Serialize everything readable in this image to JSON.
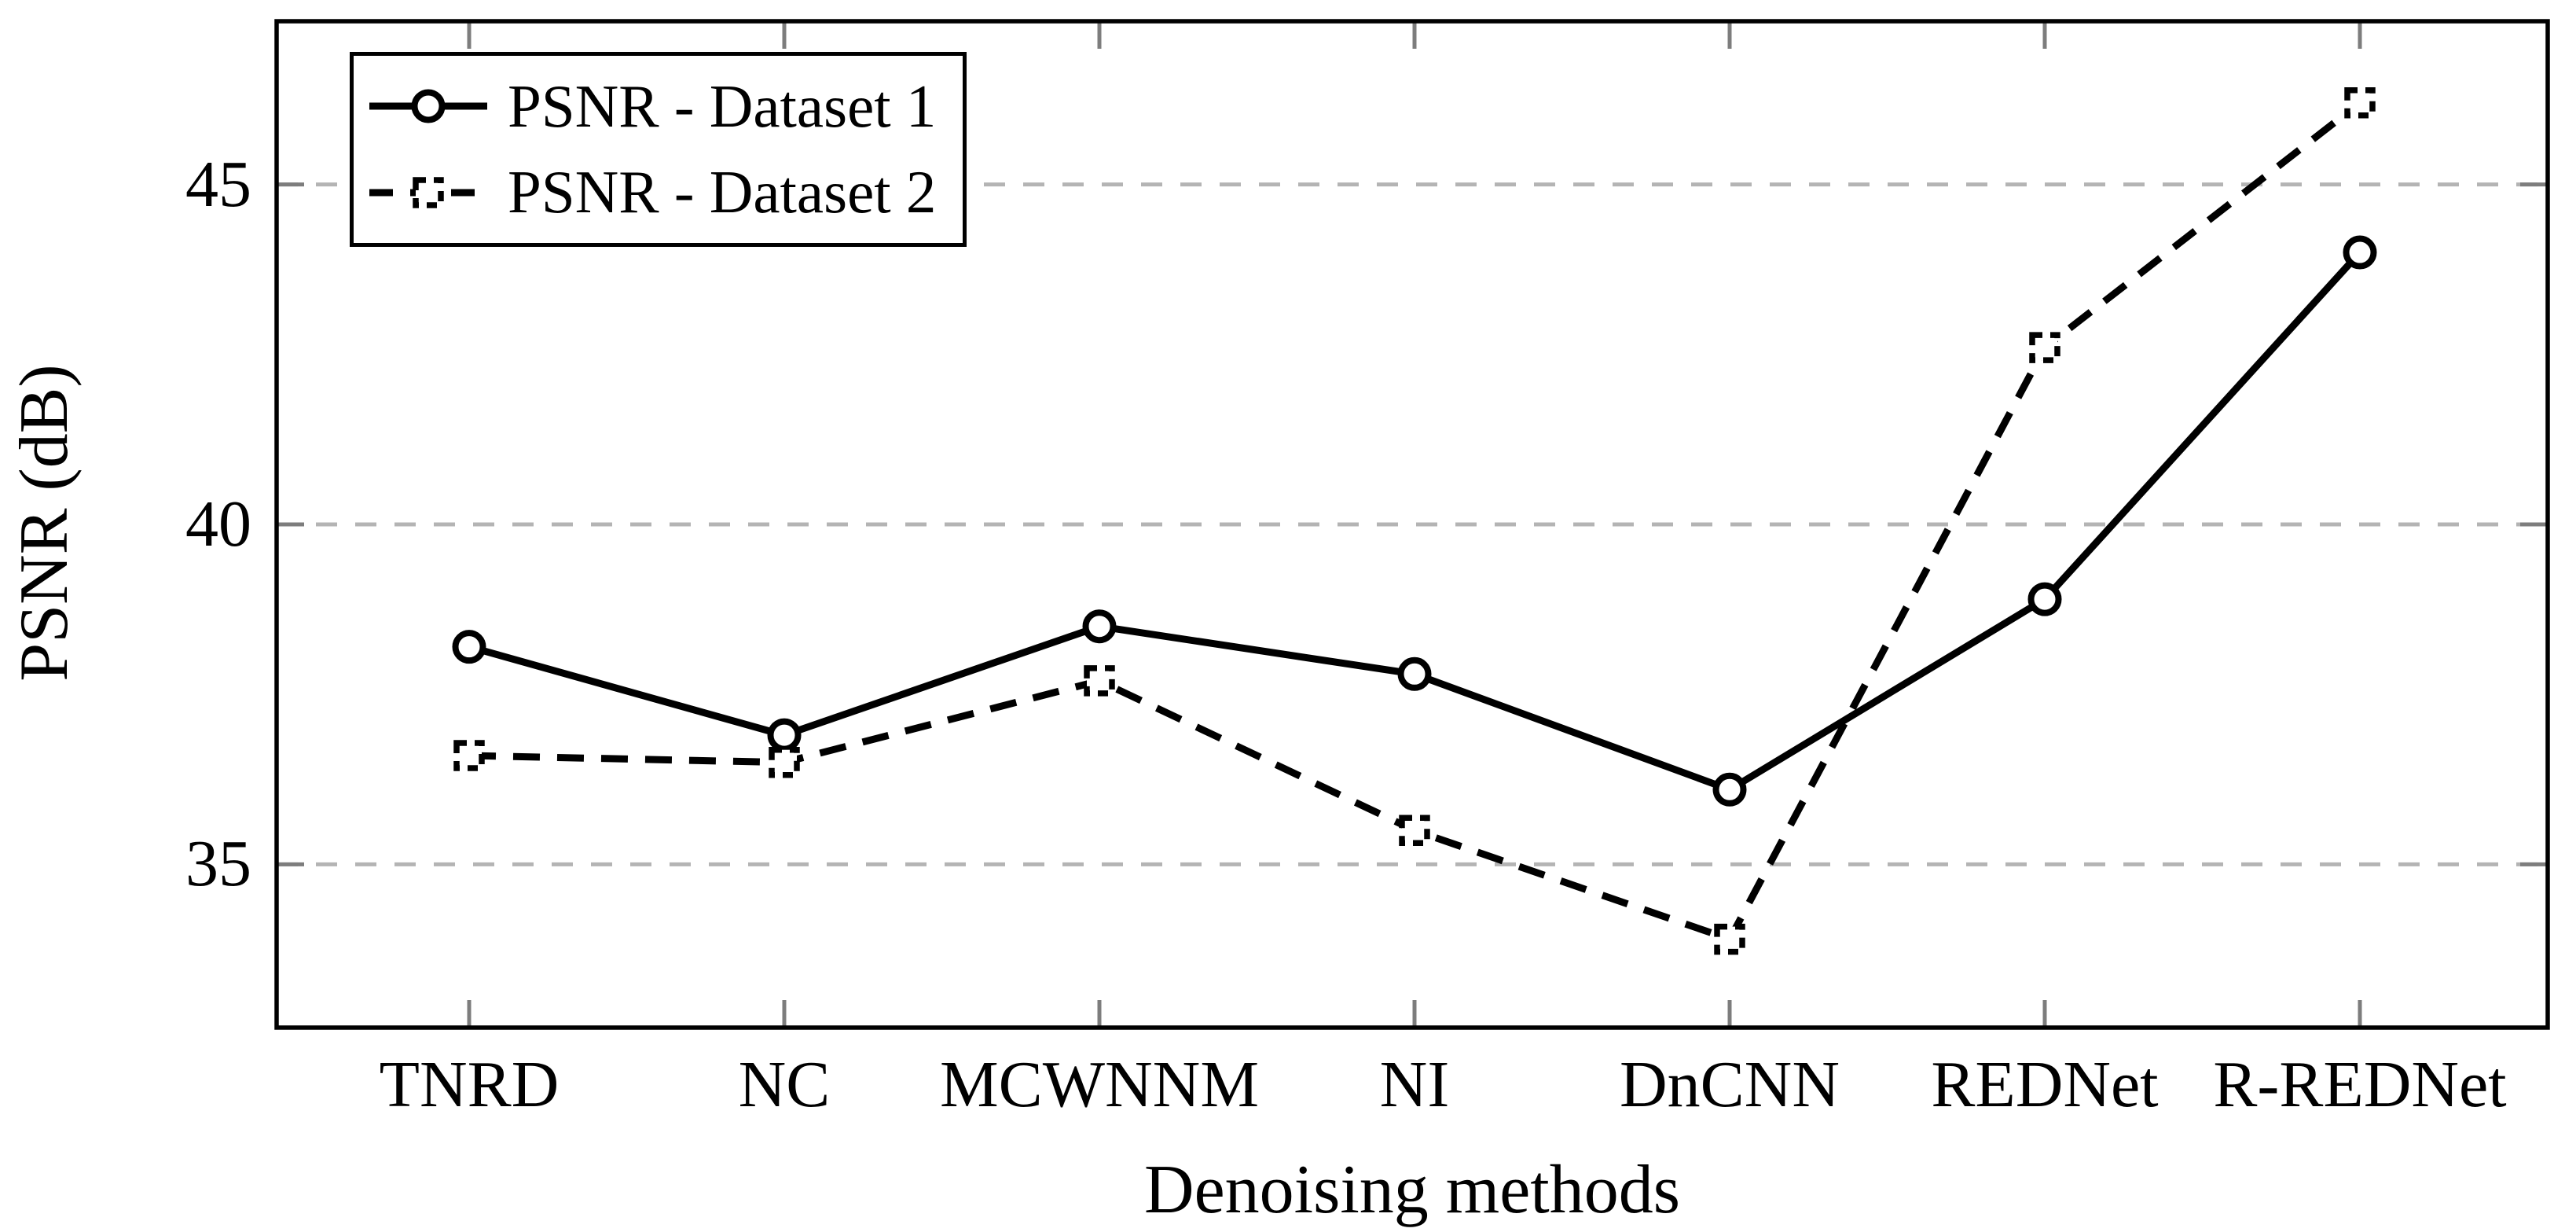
{
  "page": {
    "background": "#ffffff"
  },
  "chart_data": {
    "type": "line",
    "title": "",
    "xlabel": "Denoising methods",
    "ylabel": "PSNR (dB)",
    "categories": [
      "TNRD",
      "NC",
      "MCWNNM",
      "NI",
      "DnCNN",
      "REDNet",
      "R-REDNet"
    ],
    "series": [
      {
        "name": "PSNR - Dataset 1",
        "line_style": "solid",
        "marker": "circle",
        "color": "#000000",
        "values": [
          38.2,
          36.9,
          38.5,
          37.8,
          36.1,
          38.9,
          44.0
        ]
      },
      {
        "name": "PSNR - Dataset 2",
        "line_style": "dashed",
        "marker": "square",
        "color": "#000000",
        "values": [
          36.6,
          36.5,
          37.7,
          35.5,
          33.9,
          42.6,
          46.2
        ]
      }
    ],
    "yticks": [
      35,
      40,
      45
    ],
    "ylim": [
      32.6,
      47.4
    ],
    "grid": "horizontal dashed gridlines at yticks",
    "legend_position": "top-left",
    "colors": {
      "series": "#000000",
      "grid": "#b4b4b4",
      "tick": "#7d7d7d",
      "text": "#000000",
      "border": "#000000",
      "background": "#ffffff"
    }
  }
}
